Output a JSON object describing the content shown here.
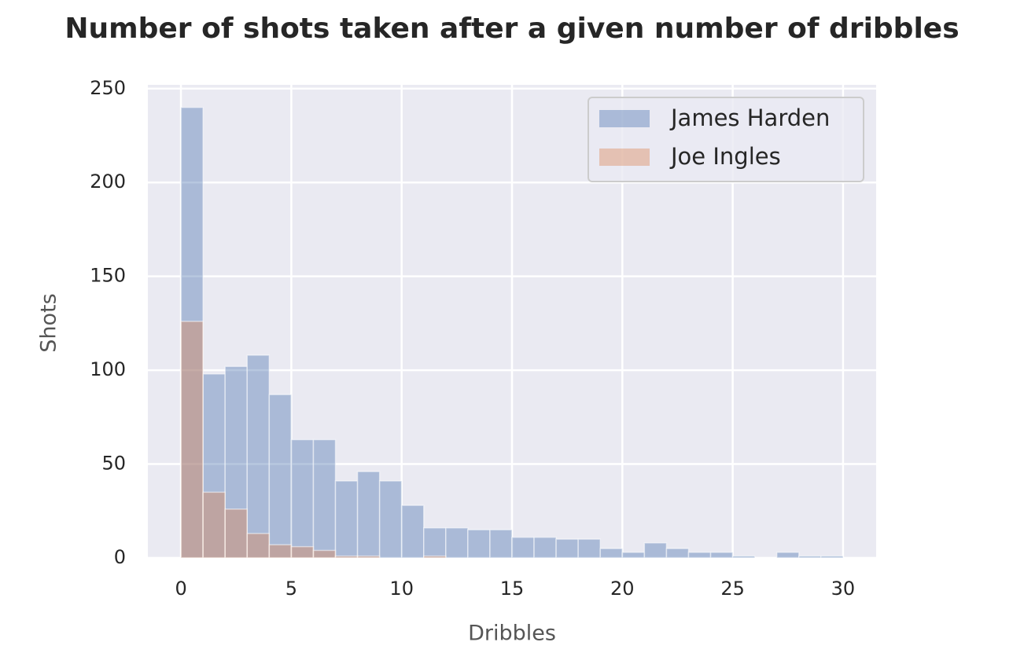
{
  "chart_data": {
    "type": "histogram",
    "title": "Number of shots taken after a given number of dribbles",
    "xlabel": "Dribbles",
    "ylabel": "Shots",
    "bins": [
      0,
      1,
      2,
      3,
      4,
      5,
      6,
      7,
      8,
      9,
      10,
      11,
      12,
      13,
      14,
      15,
      16,
      17,
      18,
      19,
      20,
      21,
      22,
      23,
      24,
      25,
      26,
      27,
      28,
      29,
      30
    ],
    "series": [
      {
        "name": "James Harden",
        "color": "#4c72b0",
        "values": [
          240,
          98,
          102,
          108,
          87,
          63,
          63,
          41,
          46,
          41,
          28,
          16,
          16,
          15,
          15,
          11,
          11,
          10,
          10,
          5,
          3,
          8,
          5,
          3,
          3,
          1,
          0,
          3,
          1,
          1
        ]
      },
      {
        "name": "Joe Ingles",
        "color": "#dd8452",
        "values": [
          126,
          35,
          26,
          13,
          7,
          6,
          4,
          1,
          1,
          0,
          0,
          1,
          0,
          0,
          0,
          0,
          0,
          0,
          0,
          0,
          0,
          0,
          0,
          0,
          0,
          0,
          0,
          0,
          0,
          0
        ]
      }
    ],
    "xlim": [
      -1.5,
      31.5
    ],
    "ylim": [
      0,
      252
    ],
    "xticks": [
      0,
      5,
      10,
      15,
      20,
      25,
      30
    ],
    "yticks": [
      0,
      50,
      100,
      150,
      200,
      250
    ],
    "grid": true,
    "legend": "upper right"
  }
}
